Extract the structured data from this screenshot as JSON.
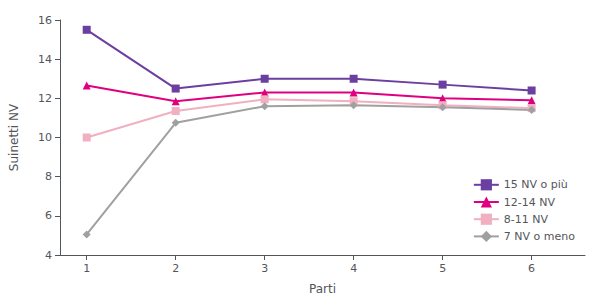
{
  "chart_data": {
    "type": "line",
    "x": [
      1,
      2,
      3,
      4,
      5,
      6
    ],
    "series": [
      {
        "name": "15 NV o più",
        "color": "#6B3FA0",
        "marker": "square",
        "values": [
          15.5,
          12.5,
          13.0,
          13.0,
          12.7,
          12.4
        ]
      },
      {
        "name": "12-14 NV",
        "color": "#E0007F",
        "marker": "triangle",
        "values": [
          12.65,
          11.85,
          12.3,
          12.3,
          12.0,
          11.9
        ]
      },
      {
        "name": "8-11 NV",
        "color": "#F0B0C0",
        "marker": "square",
        "values": [
          10.0,
          11.35,
          11.95,
          11.85,
          11.65,
          11.5
        ]
      },
      {
        "name": "7 NV o meno",
        "color": "#A0A0A0",
        "marker": "diamond",
        "values": [
          5.05,
          10.75,
          11.6,
          11.65,
          11.55,
          11.4
        ]
      }
    ],
    "x_label": "Parti",
    "y_label": "Suinetti NV",
    "xlim": [
      0.7,
      6.6
    ],
    "xticks": [
      1,
      2,
      3,
      4,
      5,
      6
    ],
    "ylim": [
      4,
      16
    ],
    "yticks": [
      4,
      6,
      8,
      10,
      12,
      14,
      16
    ],
    "grid": false,
    "legend": "lower right"
  }
}
